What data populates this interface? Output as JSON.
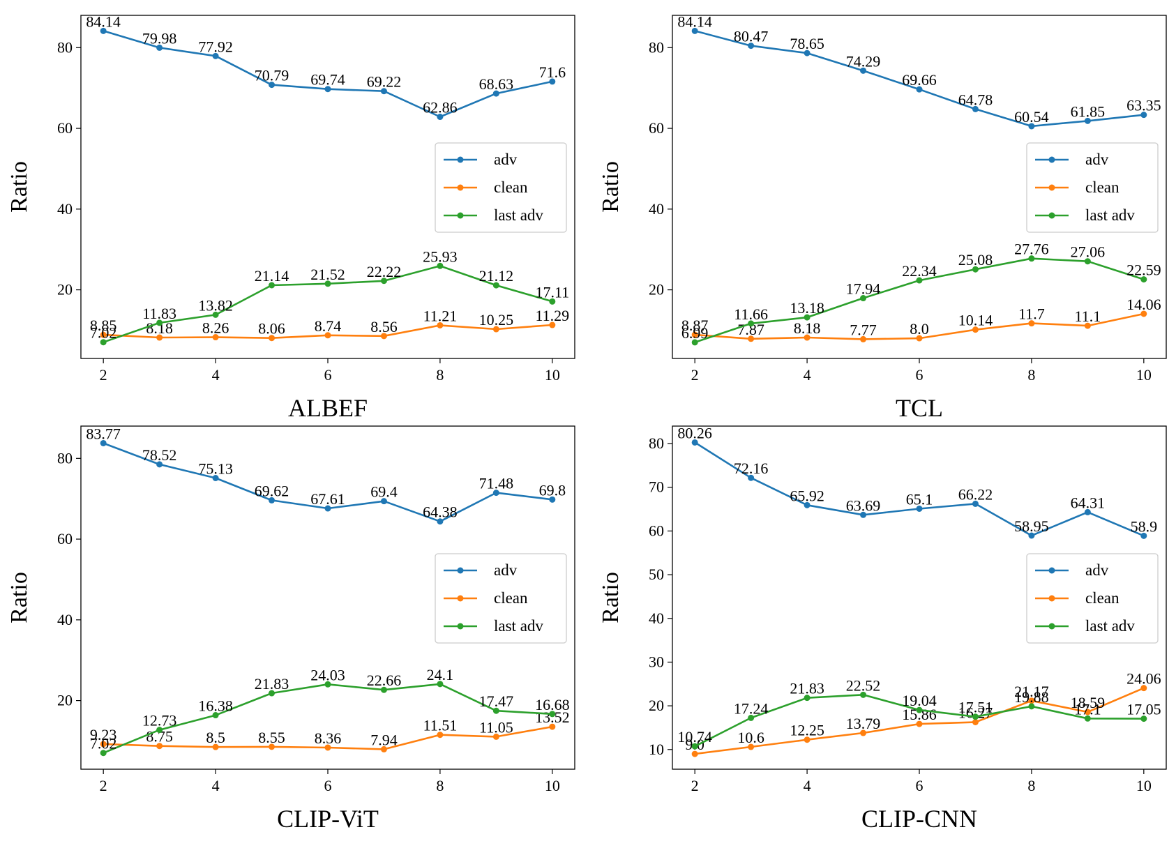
{
  "chart_data": [
    {
      "type": "line",
      "title": "ALBEF",
      "xlabel": "ALBEF",
      "ylabel": "Ratio",
      "x": [
        2,
        3,
        4,
        5,
        6,
        7,
        8,
        9,
        10
      ],
      "xlim": [
        1.6,
        10.4
      ],
      "ylim": [
        3,
        88
      ],
      "xticks": [
        2,
        4,
        6,
        8,
        10
      ],
      "yticks": [
        20,
        40,
        60,
        80
      ],
      "grid": false,
      "legend_position": "center-right",
      "series": [
        {
          "name": "adv",
          "color": "#1f77b4",
          "values": [
            84.14,
            79.98,
            77.92,
            70.79,
            69.74,
            69.22,
            62.86,
            68.63,
            71.6
          ],
          "labels": [
            "84.14",
            "79.98",
            "77.92",
            "70.79",
            "69.74",
            "69.22",
            "62.86",
            "68.63",
            "71.6"
          ]
        },
        {
          "name": "clean",
          "color": "#ff7f0e",
          "values": [
            8.85,
            8.18,
            8.26,
            8.06,
            8.74,
            8.56,
            11.21,
            10.25,
            11.29
          ],
          "labels": [
            "8.85",
            "8.18",
            "8.26",
            "8.06",
            "8.74",
            "8.56",
            "11.21",
            "10.25",
            "11.29"
          ]
        },
        {
          "name": "last adv",
          "color": "#2ca02c",
          "values": [
            7.02,
            11.83,
            13.82,
            21.14,
            21.52,
            22.22,
            25.93,
            21.12,
            17.11
          ],
          "labels": [
            "7.02",
            "11.83",
            "13.82",
            "21.14",
            "21.52",
            "22.22",
            "25.93",
            "21.12",
            "17.11"
          ]
        }
      ]
    },
    {
      "type": "line",
      "title": "TCL",
      "xlabel": "TCL",
      "ylabel": "Ratio",
      "x": [
        2,
        3,
        4,
        5,
        6,
        7,
        8,
        9,
        10
      ],
      "xlim": [
        1.6,
        10.4
      ],
      "ylim": [
        3,
        88
      ],
      "xticks": [
        2,
        4,
        6,
        8,
        10
      ],
      "yticks": [
        20,
        40,
        60,
        80
      ],
      "grid": false,
      "legend_position": "center-right",
      "series": [
        {
          "name": "adv",
          "color": "#1f77b4",
          "values": [
            84.14,
            80.47,
            78.65,
            74.29,
            69.66,
            64.78,
            60.54,
            61.85,
            63.35
          ],
          "labels": [
            "84.14",
            "80.47",
            "78.65",
            "74.29",
            "69.66",
            "64.78",
            "60.54",
            "61.85",
            "63.35"
          ]
        },
        {
          "name": "clean",
          "color": "#ff7f0e",
          "values": [
            8.87,
            7.87,
            8.18,
            7.77,
            8.0,
            10.14,
            11.7,
            11.1,
            14.06
          ],
          "labels": [
            "8.87",
            "7.87",
            "8.18",
            "7.77",
            "8.0",
            "10.14",
            "11.7",
            "11.1",
            "14.06"
          ]
        },
        {
          "name": "last adv",
          "color": "#2ca02c",
          "values": [
            6.99,
            11.66,
            13.18,
            17.94,
            22.34,
            25.08,
            27.76,
            27.06,
            22.59
          ],
          "labels": [
            "6.99",
            "11.66",
            "13.18",
            "17.94",
            "22.34",
            "25.08",
            "27.76",
            "27.06",
            "22.59"
          ]
        }
      ]
    },
    {
      "type": "line",
      "title": "CLIP-ViT",
      "xlabel": "CLIP-ViT",
      "ylabel": "Ratio",
      "x": [
        2,
        3,
        4,
        5,
        6,
        7,
        8,
        9,
        10
      ],
      "xlim": [
        1.6,
        10.4
      ],
      "ylim": [
        3,
        88
      ],
      "xticks": [
        2,
        4,
        6,
        8,
        10
      ],
      "yticks": [
        20,
        40,
        60,
        80
      ],
      "grid": false,
      "legend_position": "center-right",
      "series": [
        {
          "name": "adv",
          "color": "#1f77b4",
          "values": [
            83.77,
            78.52,
            75.13,
            69.62,
            67.61,
            69.4,
            64.38,
            71.48,
            69.8
          ],
          "labels": [
            "83.77",
            "78.52",
            "75.13",
            "69.62",
            "67.61",
            "69.4",
            "64.38",
            "71.48",
            "69.8"
          ]
        },
        {
          "name": "clean",
          "color": "#ff7f0e",
          "values": [
            9.23,
            8.75,
            8.5,
            8.55,
            8.36,
            7.94,
            11.51,
            11.05,
            13.52
          ],
          "labels": [
            "9.23",
            "8.75",
            "8.5",
            "8.55",
            "8.36",
            "7.94",
            "11.51",
            "11.05",
            "13.52"
          ]
        },
        {
          "name": "last adv",
          "color": "#2ca02c",
          "values": [
            7.02,
            12.73,
            16.38,
            21.83,
            24.03,
            22.66,
            24.1,
            17.47,
            16.68
          ],
          "labels": [
            "7.02",
            "12.73",
            "16.38",
            "21.83",
            "24.03",
            "22.66",
            "24.1",
            "17.47",
            "16.68"
          ]
        }
      ]
    },
    {
      "type": "line",
      "title": "CLIP-CNN",
      "xlabel": "CLIP-CNN",
      "ylabel": "Ratio",
      "x": [
        2,
        3,
        4,
        5,
        6,
        7,
        8,
        9,
        10
      ],
      "xlim": [
        1.6,
        10.4
      ],
      "ylim": [
        5.5,
        84
      ],
      "xticks": [
        2,
        4,
        6,
        8,
        10
      ],
      "yticks": [
        10,
        20,
        30,
        40,
        50,
        60,
        70,
        80
      ],
      "grid": false,
      "legend_position": "center-right",
      "series": [
        {
          "name": "adv",
          "color": "#1f77b4",
          "values": [
            80.26,
            72.16,
            65.92,
            63.69,
            65.1,
            66.22,
            58.95,
            64.31,
            58.9
          ],
          "labels": [
            "80.26",
            "72.16",
            "65.92",
            "63.69",
            "65.1",
            "66.22",
            "58.95",
            "64.31",
            "58.9"
          ]
        },
        {
          "name": "clean",
          "color": "#ff7f0e",
          "values": [
            9.0,
            10.6,
            12.25,
            13.79,
            15.86,
            16.27,
            21.17,
            18.59,
            24.06
          ],
          "labels": [
            "9.0",
            "10.6",
            "12.25",
            "13.79",
            "15.86",
            "16.27",
            "21.17",
            "18.59",
            "24.06"
          ]
        },
        {
          "name": "last adv",
          "color": "#2ca02c",
          "values": [
            10.74,
            17.24,
            21.83,
            22.52,
            19.04,
            17.51,
            19.88,
            17.1,
            17.05
          ],
          "labels": [
            "10.74",
            "17.24",
            "21.83",
            "22.52",
            "19.04",
            "17.51",
            "19.88",
            "17.1",
            "17.05"
          ]
        }
      ]
    }
  ]
}
